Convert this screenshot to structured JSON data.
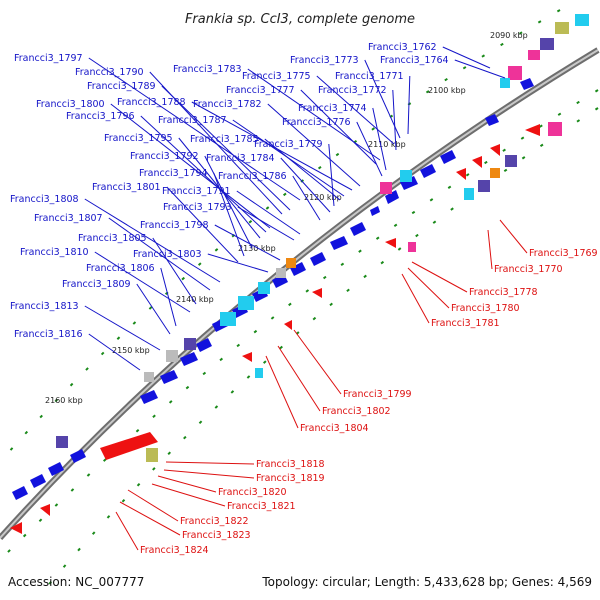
{
  "title": "Frankia sp. CcI3, complete genome",
  "accession_text": "Accession: NC_007777",
  "topology_text": "Topology: circular; Length: 5,433,628 bp; Genes: 4,569",
  "colors": {
    "forward_label": "#1515c8",
    "reverse_label": "#dd1111",
    "forward_gene": "#1212dd",
    "reverse_gene": "#ee1111",
    "backbone": "#888888"
  },
  "ticks": [
    "2090 kbp",
    "2100 kbp",
    "2110 kbp",
    "2120 kbp",
    "2130 kbp",
    "2140 kbp",
    "2150 kbp",
    "2160 kbp"
  ],
  "forward_labels": [
    "Francci3_1762",
    "Francci3_1764",
    "Francci3_1773",
    "Francci3_1771",
    "Francci3_1775",
    "Francci3_1772",
    "Francci3_1783",
    "Francci3_1777",
    "Francci3_1774",
    "Francci3_1776",
    "Francci3_1797",
    "Francci3_1790",
    "Francci3_1789",
    "Francci3_1782",
    "Francci3_1788",
    "Francci3_1800",
    "Francci3_1796",
    "Francci3_1787",
    "Francci3_1795",
    "Francci3_1785",
    "Francci3_1779",
    "Francci3_1792",
    "Francci3_1784",
    "Francci3_1794",
    "Francci3_1786",
    "Francci3_1801",
    "Francci3_1791",
    "Francci3_1808",
    "Francci3_1793",
    "Francci3_1807",
    "Francci3_1798",
    "Francci3_1805",
    "Francci3_1810",
    "Francci3_1803",
    "Francci3_1806",
    "Francci3_1809",
    "Francci3_1813",
    "Francci3_1816"
  ],
  "reverse_labels": [
    "Francci3_1769",
    "Francci3_1770",
    "Francci3_1778",
    "Francci3_1780",
    "Francci3_1781",
    "Francci3_1799",
    "Francci3_1802",
    "Francci3_1804",
    "Francci3_1818",
    "Francci3_1819",
    "Francci3_1820",
    "Francci3_1821",
    "Francci3_1822",
    "Francci3_1823",
    "Francci3_1824"
  ]
}
